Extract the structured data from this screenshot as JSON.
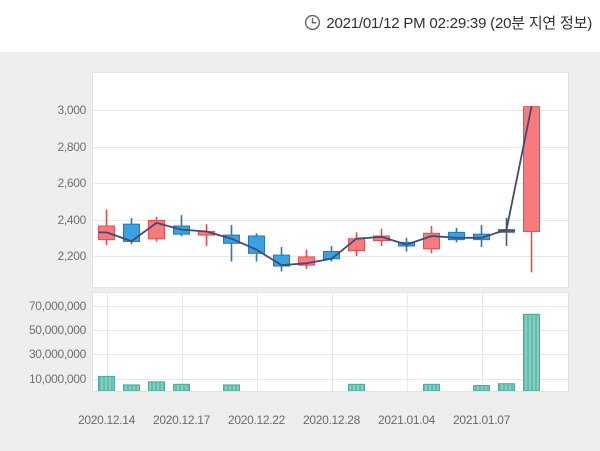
{
  "header": {
    "timestamp_text": "2021/01/12 PM 02:29:39 (20분 지연 정보)",
    "icon": "clock-icon"
  },
  "chart_data": {
    "type": "candlestick",
    "title": "",
    "legend": null,
    "grid": "horizontal-on-price, full-grid-on-volume",
    "price_axis": {
      "range": [
        2030,
        3205
      ],
      "ticks": [
        {
          "value": 3000,
          "label": "3,000"
        },
        {
          "value": 2800,
          "label": "2,800"
        },
        {
          "value": 2600,
          "label": "2,600"
        },
        {
          "value": 2400,
          "label": "2,400"
        },
        {
          "value": 2200,
          "label": "2,200"
        }
      ]
    },
    "volume_axis": {
      "range": [
        0,
        80500000
      ],
      "ticks": [
        {
          "value": 70000000,
          "label": "70,000,000"
        },
        {
          "value": 50000000,
          "label": "50,000,000"
        },
        {
          "value": 30000000,
          "label": "30,000,000"
        },
        {
          "value": 10000000,
          "label": "10,000,000"
        }
      ]
    },
    "x_axis": {
      "ticks": [
        {
          "index": 0,
          "label": "2020.12.14"
        },
        {
          "index": 3,
          "label": "2020.12.17"
        },
        {
          "index": 6,
          "label": "2020.12.22"
        },
        {
          "index": 9,
          "label": "2020.12.28"
        },
        {
          "index": 12,
          "label": "2021.01.04"
        },
        {
          "index": 15,
          "label": "2021.01.07"
        }
      ]
    },
    "candles": [
      {
        "open": 2290,
        "high": 2455,
        "low": 2260,
        "close": 2365,
        "dir": "up",
        "volume": 12000000
      },
      {
        "open": 2375,
        "high": 2410,
        "low": 2265,
        "close": 2280,
        "dir": "down",
        "volume": 5000000
      },
      {
        "open": 2295,
        "high": 2415,
        "low": 2280,
        "close": 2395,
        "dir": "up",
        "volume": 7500000
      },
      {
        "open": 2365,
        "high": 2425,
        "low": 2308,
        "close": 2320,
        "dir": "down",
        "volume": 5500000
      },
      {
        "open": 2315,
        "high": 2375,
        "low": 2255,
        "close": 2335,
        "dir": "up",
        "volume": 0
      },
      {
        "open": 2315,
        "high": 2370,
        "low": 2170,
        "close": 2270,
        "dir": "down",
        "volume": 5000000
      },
      {
        "open": 2310,
        "high": 2325,
        "low": 2170,
        "close": 2215,
        "dir": "down",
        "volume": 0
      },
      {
        "open": 2205,
        "high": 2250,
        "low": 2115,
        "close": 2145,
        "dir": "down",
        "volume": 0
      },
      {
        "open": 2150,
        "high": 2235,
        "low": 2130,
        "close": 2195,
        "dir": "up",
        "volume": 0
      },
      {
        "open": 2225,
        "high": 2255,
        "low": 2170,
        "close": 2185,
        "dir": "down",
        "volume": 0
      },
      {
        "open": 2230,
        "high": 2330,
        "low": 2200,
        "close": 2295,
        "dir": "up",
        "volume": 5500000
      },
      {
        "open": 2285,
        "high": 2350,
        "low": 2255,
        "close": 2310,
        "dir": "up",
        "volume": 0
      },
      {
        "open": 2275,
        "high": 2300,
        "low": 2225,
        "close": 2255,
        "dir": "down",
        "volume": 0
      },
      {
        "open": 2240,
        "high": 2365,
        "low": 2215,
        "close": 2325,
        "dir": "up",
        "volume": 5500000
      },
      {
        "open": 2330,
        "high": 2355,
        "low": 2275,
        "close": 2290,
        "dir": "down",
        "volume": 0
      },
      {
        "open": 2320,
        "high": 2370,
        "low": 2250,
        "close": 2290,
        "dir": "down",
        "volume": 4500000
      },
      {
        "open": 2345,
        "high": 2410,
        "low": 2255,
        "close": 2345,
        "dir": "flat",
        "volume": 6000000
      },
      {
        "open": 2335,
        "high": 3020,
        "low": 2110,
        "close": 3020,
        "dir": "up",
        "volume": 63000000
      }
    ],
    "close_line": [
      2330,
      2282,
      2382,
      2345,
      2335,
      2295,
      2235,
      2150,
      2160,
      2185,
      2295,
      2305,
      2263,
      2310,
      2300,
      2300,
      2345,
      3020
    ],
    "colors": {
      "up_fill": "#f8797e",
      "up_stroke": "#e84a50",
      "down_fill": "#3ba2e1",
      "down_stroke": "#2277bd",
      "flat": "#515c6e",
      "line": "#3d4d74",
      "volume_fill": "#83cdc1",
      "volume_stripe": "#64beb0",
      "volume_stroke": "#4aa99a",
      "grid": "#e8e8e8",
      "panel_bg": "#eeeeee",
      "plot_bg": "#ffffff"
    }
  }
}
